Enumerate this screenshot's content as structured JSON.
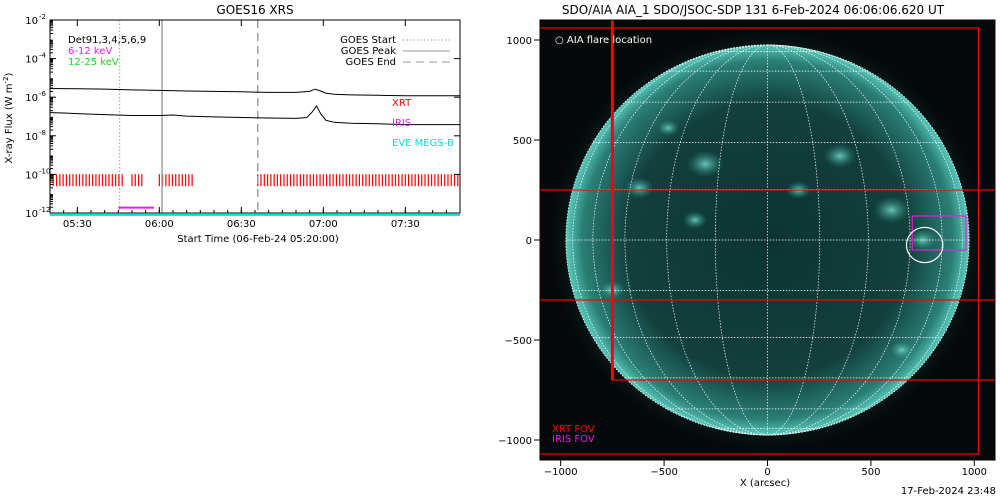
{
  "chart_data": [
    {
      "type": "line",
      "title": "GOES16 XRS",
      "xlabel": "Start Time (06-Feb-24 05:20:00)",
      "ylabel": "X-ray Flux (W m",
      "ylabel_sup": "-2",
      "ylabel_close": ")",
      "x_unit": "minutes after 05:20:00",
      "xlim": [
        0,
        150
      ],
      "ylim_log10": [
        -12,
        -2
      ],
      "ylog": true,
      "x_ticks": [
        {
          "label": "05:30",
          "x": 10
        },
        {
          "label": "06:00",
          "x": 40
        },
        {
          "label": "06:30",
          "x": 70
        },
        {
          "label": "07:00",
          "x": 100
        },
        {
          "label": "07:30",
          "x": 130
        }
      ],
      "y_ticks": [
        {
          "base": "10",
          "exp": "-2",
          "log": -2
        },
        {
          "base": "10",
          "exp": "-4",
          "log": -4
        },
        {
          "base": "10",
          "exp": "-6",
          "log": -6
        },
        {
          "base": "10",
          "exp": "-8",
          "log": -8
        },
        {
          "base": "10",
          "exp": "-10",
          "log": -10
        },
        {
          "base": "10",
          "exp": "-12",
          "log": -12
        }
      ],
      "annotations": {
        "det_label": "Det91,3,4,5,6,9",
        "energy_bands": [
          {
            "label": "6-12  keV",
            "color": "#e020e0"
          },
          {
            "label": "12-25 keV",
            "color": "#20d020"
          }
        ],
        "instrument_labels": [
          {
            "label": "XRT",
            "color": "#ff0000"
          },
          {
            "label": "IRIS",
            "color": "#e020e0"
          },
          {
            "label": "EVE MEGS-B",
            "color": "#00e0e0"
          }
        ],
        "legend": [
          {
            "label": "GOES Start",
            "style": "dotted",
            "color": "#999999"
          },
          {
            "label": "GOES Peak",
            "style": "solid",
            "color": "#999999"
          },
          {
            "label": "GOES End",
            "style": "dashed",
            "color": "#999999"
          }
        ],
        "legend_position": "top-right"
      },
      "event_times": {
        "start": 25.5,
        "peak": 41,
        "end": 76
      },
      "series": [
        {
          "color": "#000000",
          "x": [
            0,
            10,
            20,
            30,
            40,
            50,
            60,
            70,
            80,
            90,
            95,
            97,
            99,
            101,
            104,
            110,
            120,
            130,
            140,
            150
          ],
          "log_flux": [
            -5.55,
            -5.56,
            -5.58,
            -5.62,
            -5.65,
            -5.68,
            -5.7,
            -5.72,
            -5.75,
            -5.75,
            -5.7,
            -5.58,
            -5.68,
            -5.8,
            -5.85,
            -5.88,
            -5.9,
            -5.92,
            -5.92,
            -5.93
          ]
        },
        {
          "color": "#000000",
          "x": [
            0,
            5,
            10,
            20,
            30,
            40,
            45,
            50,
            60,
            70,
            80,
            90,
            94,
            96,
            97.5,
            99,
            101,
            104,
            110,
            120,
            130,
            140,
            150
          ],
          "log_flux": [
            -6.8,
            -6.82,
            -6.85,
            -6.9,
            -6.95,
            -6.95,
            -6.92,
            -6.98,
            -7.02,
            -7.05,
            -7.08,
            -7.1,
            -7.05,
            -6.75,
            -6.45,
            -6.85,
            -7.2,
            -7.3,
            -7.35,
            -7.38,
            -7.42,
            -7.42,
            -7.42
          ]
        }
      ],
      "coverage_bars": [
        {
          "name": "XRT",
          "color": "#ff0000",
          "log_flux": -10.3,
          "segments": [
            [
              0,
              27
            ],
            [
              30,
              34
            ],
            [
              40,
              53
            ],
            [
              76,
              150
            ]
          ]
        },
        {
          "name": "IRIS",
          "color": "#e020e0",
          "log_flux": -11.72,
          "segments": [
            [
              25,
              38
            ]
          ]
        },
        {
          "name": "EVE MEGS-B",
          "color": "#00e0e0",
          "log_flux": -12.1,
          "segments": [
            [
              0,
              150
            ]
          ]
        }
      ]
    },
    {
      "type": "scatter",
      "title": "SDO/AIA AIA_1 SDO/JSOC-SDP 131  6-Feb-2024 06:06:06.620 UT",
      "xlabel": "X (arcsec)",
      "ylabel": "",
      "xlim": [
        -1100,
        1100
      ],
      "ylim": [
        -1100,
        1100
      ],
      "x_ticks": [
        -1000,
        -500,
        0,
        500,
        1000
      ],
      "y_ticks": [
        -1000,
        -500,
        0,
        500,
        1000
      ],
      "solar_radius_arcsec": 975,
      "legend_top": "AIA flare location",
      "fov_labels": [
        {
          "label": "XRT FOV",
          "color": "#ff0000"
        },
        {
          "label": "IRIS FOV",
          "color": "#e020e0"
        }
      ],
      "flare_location": {
        "x": 760,
        "y": -25,
        "radius": 55
      },
      "iris_fov": {
        "x": [
          700,
          960
        ],
        "y": [
          -50,
          120
        ]
      },
      "xrt_fovs": [
        {
          "x": [
            -1100,
            1020
          ],
          "y": [
            -1070,
            1060
          ]
        },
        {
          "x": [
            -750,
            1100
          ],
          "y": [
            -700,
            1100
          ]
        },
        {
          "x": [
            -1100,
            1100
          ],
          "y": [
            -300,
            250
          ]
        }
      ]
    }
  ],
  "footer": {
    "timestamp": "17-Feb-2024 23:48"
  }
}
